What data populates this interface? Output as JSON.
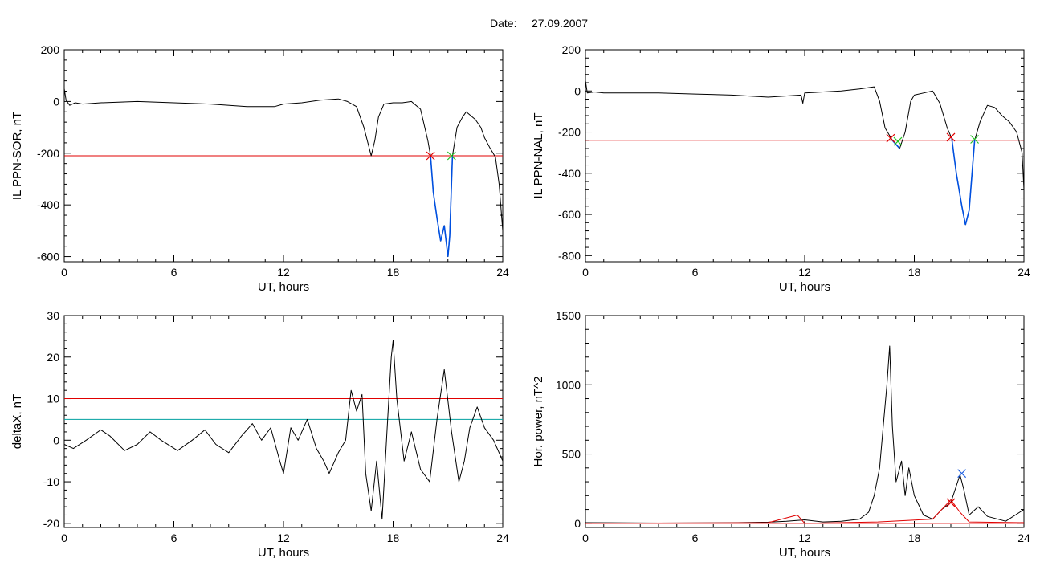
{
  "header": {
    "date_label": "Date:",
    "date_value": "27.09.2007"
  },
  "colors": {
    "trace": "#000000",
    "threshold_red": "#e00000",
    "threshold_teal": "#00a0a0",
    "highlight_blue": "#0050e0",
    "marker_red": "#d02020",
    "marker_green": "#20c020",
    "marker_blue": "#2060e0"
  },
  "chart_data": [
    {
      "type": "line",
      "xlabel": "UT, hours",
      "ylabel": "IL PPN-SOR, nT",
      "xlim": [
        0,
        24
      ],
      "ylim": [
        -620,
        200
      ],
      "xticks": [
        0,
        6,
        12,
        18,
        24
      ],
      "yticks": [
        200,
        0,
        -200,
        -400,
        -600
      ],
      "series": [
        {
          "points": [
            [
              0,
              50
            ],
            [
              0.1,
              5
            ],
            [
              0.3,
              -15
            ],
            [
              0.6,
              -5
            ],
            [
              1,
              -10
            ],
            [
              2,
              -5
            ],
            [
              4,
              0
            ],
            [
              6,
              -5
            ],
            [
              8,
              -10
            ],
            [
              10,
              -20
            ],
            [
              11.5,
              -20
            ],
            [
              12,
              -10
            ],
            [
              13,
              -5
            ],
            [
              14,
              5
            ],
            [
              15,
              10
            ],
            [
              15.5,
              0
            ],
            [
              16,
              -20
            ],
            [
              16.4,
              -100
            ],
            [
              16.8,
              -210
            ],
            [
              17,
              -150
            ],
            [
              17.2,
              -60
            ],
            [
              17.5,
              -10
            ],
            [
              18,
              -5
            ],
            [
              18.5,
              -5
            ],
            [
              19,
              0
            ],
            [
              19.5,
              -30
            ],
            [
              19.9,
              -150
            ],
            [
              20.05,
              -210
            ],
            [
              20.2,
              -350
            ],
            [
              20.4,
              -450
            ],
            [
              20.6,
              -540
            ],
            [
              20.8,
              -480
            ],
            [
              21,
              -600
            ],
            [
              21.1,
              -520
            ],
            [
              21.25,
              -210
            ],
            [
              21.5,
              -100
            ],
            [
              21.8,
              -60
            ],
            [
              22,
              -40
            ],
            [
              22.5,
              -70
            ],
            [
              22.8,
              -100
            ],
            [
              23,
              -140
            ],
            [
              23.3,
              -180
            ],
            [
              23.6,
              -215
            ],
            [
              23.8,
              -320
            ],
            [
              24,
              -500
            ]
          ]
        }
      ],
      "threshold_lines": [
        {
          "y": -210,
          "color": "red"
        }
      ],
      "highlight_range": [
        20.05,
        21.25
      ],
      "markers": [
        {
          "x": 20.05,
          "y": -210,
          "color": "red"
        },
        {
          "x": 21.2,
          "y": -210,
          "color": "green"
        }
      ]
    },
    {
      "type": "line",
      "xlabel": "UT, hours",
      "ylabel": "IL PPN-NAL, nT",
      "xlim": [
        0,
        24
      ],
      "ylim": [
        -830,
        200
      ],
      "xticks": [
        0,
        6,
        12,
        18,
        24
      ],
      "yticks": [
        200,
        0,
        -200,
        -400,
        -600,
        -800
      ],
      "series": [
        {
          "points": [
            [
              0,
              50
            ],
            [
              0.1,
              -10
            ],
            [
              0.5,
              -5
            ],
            [
              1,
              -10
            ],
            [
              2,
              -10
            ],
            [
              4,
              -10
            ],
            [
              6,
              -15
            ],
            [
              8,
              -20
            ],
            [
              10,
              -30
            ],
            [
              11.8,
              -20
            ],
            [
              11.9,
              -60
            ],
            [
              12,
              -10
            ],
            [
              14,
              0
            ],
            [
              15,
              10
            ],
            [
              15.8,
              20
            ],
            [
              16.1,
              -50
            ],
            [
              16.4,
              -180
            ],
            [
              16.8,
              -240
            ],
            [
              17.2,
              -280
            ],
            [
              17.5,
              -200
            ],
            [
              17.8,
              -50
            ],
            [
              18,
              -20
            ],
            [
              18.5,
              -10
            ],
            [
              19,
              0
            ],
            [
              19.4,
              -60
            ],
            [
              19.8,
              -180
            ],
            [
              20.05,
              -230
            ],
            [
              20.3,
              -400
            ],
            [
              20.6,
              -560
            ],
            [
              20.8,
              -650
            ],
            [
              21,
              -580
            ],
            [
              21.3,
              -240
            ],
            [
              21.6,
              -150
            ],
            [
              22,
              -70
            ],
            [
              22.4,
              -80
            ],
            [
              22.8,
              -120
            ],
            [
              23.2,
              -150
            ],
            [
              23.6,
              -200
            ],
            [
              23.9,
              -300
            ],
            [
              24,
              -480
            ]
          ]
        }
      ],
      "threshold_lines": [
        {
          "y": -240,
          "color": "red"
        }
      ],
      "highlight_ranges": [
        [
          16.8,
          17.2
        ],
        [
          20.05,
          21.3
        ]
      ],
      "markers": [
        {
          "x": 16.7,
          "y": -230,
          "color": "red"
        },
        {
          "x": 17.1,
          "y": -245,
          "color": "green"
        },
        {
          "x": 20.0,
          "y": -225,
          "color": "red"
        },
        {
          "x": 21.3,
          "y": -235,
          "color": "green"
        }
      ]
    },
    {
      "type": "line",
      "xlabel": "UT, hours",
      "ylabel": "deltaX, nT",
      "xlim": [
        0,
        24
      ],
      "ylim": [
        -21,
        30
      ],
      "xticks": [
        0,
        6,
        12,
        18,
        24
      ],
      "yticks": [
        30,
        20,
        10,
        0,
        -10,
        -20
      ],
      "series": [
        {
          "points": [
            [
              0,
              -1
            ],
            [
              0.5,
              -2
            ],
            [
              1.2,
              0
            ],
            [
              2,
              2.5
            ],
            [
              2.5,
              1
            ],
            [
              3.3,
              -2.5
            ],
            [
              4,
              -1
            ],
            [
              4.7,
              2
            ],
            [
              5.3,
              0
            ],
            [
              6.2,
              -2.5
            ],
            [
              7,
              0
            ],
            [
              7.7,
              2.5
            ],
            [
              8.3,
              -1
            ],
            [
              9,
              -3
            ],
            [
              9.7,
              1
            ],
            [
              10.3,
              4
            ],
            [
              10.8,
              0
            ],
            [
              11.3,
              3
            ],
            [
              11.8,
              -5
            ],
            [
              12,
              -8
            ],
            [
              12.4,
              3
            ],
            [
              12.8,
              0
            ],
            [
              13.3,
              5
            ],
            [
              13.8,
              -2
            ],
            [
              14.2,
              -5
            ],
            [
              14.5,
              -8
            ],
            [
              15,
              -3
            ],
            [
              15.4,
              0
            ],
            [
              15.7,
              12
            ],
            [
              16,
              7
            ],
            [
              16.3,
              11
            ],
            [
              16.5,
              -8
            ],
            [
              16.8,
              -17
            ],
            [
              17.1,
              -5
            ],
            [
              17.4,
              -19
            ],
            [
              17.7,
              5
            ],
            [
              17.9,
              20
            ],
            [
              18,
              24
            ],
            [
              18.2,
              10
            ],
            [
              18.6,
              -5
            ],
            [
              19,
              2
            ],
            [
              19.5,
              -7
            ],
            [
              20,
              -10
            ],
            [
              20.4,
              5
            ],
            [
              20.8,
              17
            ],
            [
              21.2,
              2
            ],
            [
              21.6,
              -10
            ],
            [
              21.9,
              -5
            ],
            [
              22.2,
              3
            ],
            [
              22.6,
              8
            ],
            [
              23,
              3
            ],
            [
              23.5,
              0
            ],
            [
              24,
              -5
            ]
          ]
        }
      ],
      "threshold_lines": [
        {
          "y": 10,
          "color": "red"
        },
        {
          "y": 5,
          "color": "teal"
        }
      ]
    },
    {
      "type": "line",
      "xlabel": "UT, hours",
      "ylabel": "Hor. power, nT^2",
      "xlim": [
        0,
        24
      ],
      "ylim": [
        -30,
        1500
      ],
      "xticks": [
        0,
        6,
        12,
        18,
        24
      ],
      "yticks": [
        1500,
        1000,
        500,
        0
      ],
      "series": [
        {
          "color": "black",
          "points": [
            [
              0,
              5
            ],
            [
              4,
              2
            ],
            [
              8,
              4
            ],
            [
              10,
              8
            ],
            [
              11,
              15
            ],
            [
              12,
              25
            ],
            [
              13,
              10
            ],
            [
              14,
              15
            ],
            [
              15,
              30
            ],
            [
              15.5,
              80
            ],
            [
              15.8,
              200
            ],
            [
              16.1,
              400
            ],
            [
              16.3,
              700
            ],
            [
              16.5,
              1000
            ],
            [
              16.65,
              1280
            ],
            [
              16.8,
              700
            ],
            [
              17,
              300
            ],
            [
              17.3,
              450
            ],
            [
              17.5,
              200
            ],
            [
              17.7,
              400
            ],
            [
              18,
              200
            ],
            [
              18.5,
              60
            ],
            [
              19,
              30
            ],
            [
              19.5,
              100
            ],
            [
              20,
              150
            ],
            [
              20.5,
              350
            ],
            [
              20.7,
              250
            ],
            [
              21,
              60
            ],
            [
              21.5,
              120
            ],
            [
              22,
              50
            ],
            [
              23,
              15
            ],
            [
              24,
              100
            ]
          ]
        },
        {
          "color": "red",
          "points": [
            [
              0,
              0
            ],
            [
              10,
              5
            ],
            [
              11.6,
              60
            ],
            [
              12,
              0
            ],
            [
              16,
              10
            ],
            [
              19,
              30
            ],
            [
              20,
              170
            ],
            [
              20.5,
              80
            ],
            [
              21,
              10
            ],
            [
              24,
              5
            ]
          ]
        }
      ],
      "threshold_lines": [
        {
          "y": 0,
          "color": "red"
        }
      ],
      "markers": [
        {
          "x": 20.0,
          "y": 150,
          "color": "red"
        },
        {
          "x": 20.6,
          "y": 360,
          "color": "blue"
        }
      ]
    }
  ]
}
